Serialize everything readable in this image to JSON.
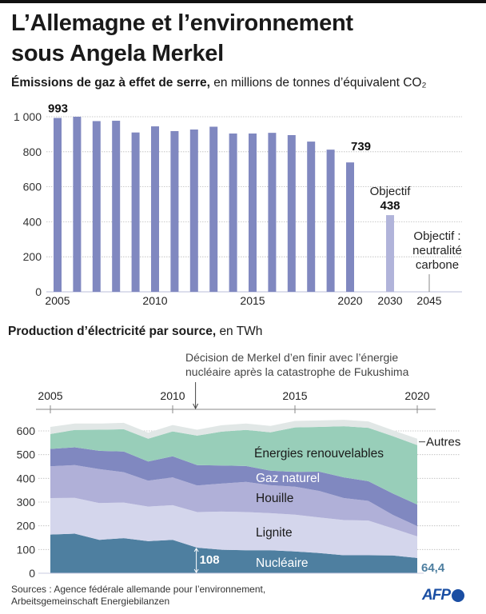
{
  "title": "L’Allemagne et l’environnement sous Angela Merkel",
  "title_lines": [
    "L’Allemagne et l’environnement",
    "sous Angela Merkel"
  ],
  "chart_data": [
    {
      "type": "bar",
      "title": "Émissions de gaz à effet de serre,",
      "subtitle": "en millions de tonnes d’équivalent CO₂",
      "categories": [
        "2005",
        "2006",
        "2007",
        "2008",
        "2009",
        "2010",
        "2011",
        "2012",
        "2013",
        "2014",
        "2015",
        "2016",
        "2017",
        "2018",
        "2019",
        "2020",
        "2030"
      ],
      "values": [
        993,
        1000,
        975,
        977,
        910,
        945,
        918,
        927,
        943,
        904,
        904,
        908,
        895,
        858,
        812,
        739,
        438
      ],
      "target_categories": [
        "2030"
      ],
      "x_tick_labels": [
        "2005",
        "2010",
        "2015",
        "2020",
        "2030",
        "2045"
      ],
      "y_ticks": [
        0,
        200,
        400,
        600,
        800,
        1000
      ],
      "y_tick_labels": [
        "0",
        "200",
        "400",
        "600",
        "800",
        "1 000"
      ],
      "ylim": [
        0,
        1000
      ],
      "grid": true,
      "data_labels": [
        {
          "category": "2005",
          "text": "993"
        },
        {
          "category": "2020",
          "text": "739"
        },
        {
          "category": "2030",
          "text": "438",
          "prefix": "Objectif"
        }
      ],
      "annotations": [
        {
          "category": "2045",
          "lines": [
            "Objectif :",
            "neutralité",
            "carbone"
          ]
        }
      ],
      "colors": {
        "bar": "#8088c0",
        "target_bar": "#b1b4da",
        "grid": "#bbbbbb",
        "axis": "#c8cbe0"
      }
    },
    {
      "type": "area",
      "stacked": true,
      "title": "Production d’électricité par source,",
      "subtitle": "en TWh",
      "x": [
        2005,
        2006,
        2007,
        2008,
        2009,
        2010,
        2011,
        2012,
        2013,
        2014,
        2015,
        2016,
        2017,
        2018,
        2019,
        2020
      ],
      "x_tick_labels": [
        "2005",
        "2010",
        "2015",
        "2020"
      ],
      "y_ticks": [
        0,
        100,
        200,
        300,
        400,
        500,
        600
      ],
      "y_tick_labels": [
        "0",
        "100",
        "200",
        "300",
        "400",
        "500",
        "600"
      ],
      "ylim": [
        0,
        650
      ],
      "grid": true,
      "series": [
        {
          "name": "Nucléaire",
          "color": "#4e7fa0",
          "values": [
            163,
            167,
            141,
            148,
            135,
            141,
            108,
            99,
            97,
            97,
            92,
            85,
            76,
            76,
            75,
            64.4
          ]
        },
        {
          "name": "Lignite",
          "color": "#d4d6ec",
          "values": [
            154,
            151,
            155,
            150,
            146,
            146,
            150,
            161,
            161,
            156,
            155,
            150,
            148,
            146,
            114,
            91
          ]
        },
        {
          "name": "Houille",
          "color": "#b0b0d8",
          "values": [
            134,
            138,
            143,
            128,
            109,
            117,
            112,
            118,
            127,
            118,
            118,
            112,
            93,
            83,
            57,
            43
          ]
        },
        {
          "name": "Gaz naturel",
          "color": "#8088c0",
          "values": [
            73,
            75,
            77,
            87,
            81,
            89,
            86,
            76,
            67,
            61,
            62,
            81,
            87,
            83,
            90,
            91
          ]
        },
        {
          "name": "Énergies renouvelables",
          "color": "#98ceb9",
          "values": [
            63,
            73,
            89,
            94,
            96,
            105,
            124,
            143,
            152,
            162,
            188,
            189,
            216,
            225,
            242,
            251
          ]
        },
        {
          "name": "Autres",
          "color": "#e1e7e6",
          "values": [
            30,
            27,
            26,
            27,
            26,
            27,
            25,
            27,
            27,
            27,
            27,
            27,
            27,
            27,
            25,
            27
          ]
        }
      ],
      "data_labels": [
        {
          "series": "Nucléaire",
          "x": 2011,
          "text": "108"
        },
        {
          "series": "Nucléaire",
          "x": 2020,
          "text": "64,4"
        }
      ],
      "event_annotation": {
        "x": 2011,
        "lines": [
          "Décision de Merkel d’en finir avec l’énergie",
          "nucléaire après la catastrophe de Fukushima"
        ]
      }
    }
  ],
  "footer": {
    "sources_lines": [
      "Sources : Agence fédérale allemande pour l’environnement,",
      "Arbeitsgemeinschaft Energiebilanzen"
    ],
    "logo_text": "AFP",
    "logo_color": "#1a4ea3"
  }
}
